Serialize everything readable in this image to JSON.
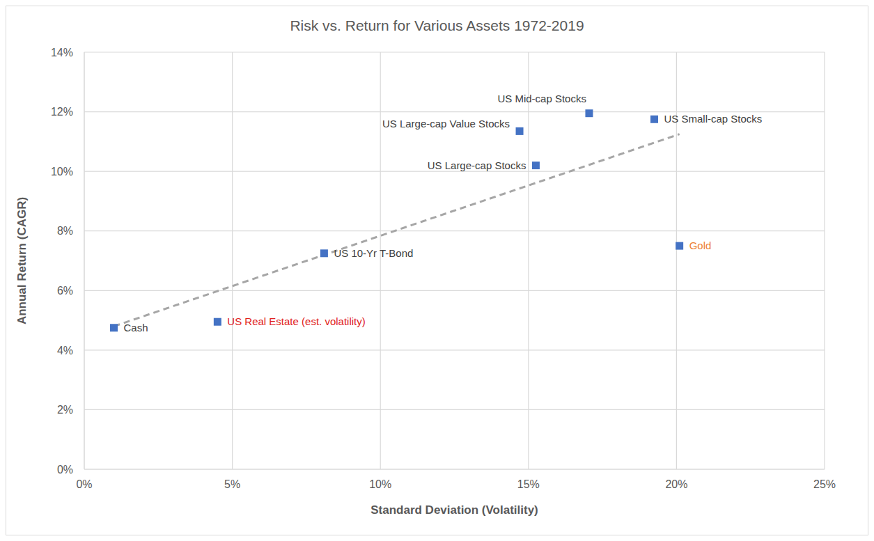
{
  "chart_data": {
    "type": "scatter",
    "title": "Risk vs. Return for Various Assets 1972-2019",
    "x_label": "Standard Deviation (Volatility)",
    "y_label": "Annual Return (CAGR)",
    "x": [
      1.0,
      4.5,
      8.1,
      14.7,
      15.25,
      17.05,
      19.25,
      20.1
    ],
    "values": [
      4.75,
      4.95,
      7.25,
      11.35,
      10.2,
      11.95,
      11.75,
      7.5
    ],
    "labels": [
      {
        "text": "Cash",
        "color": "#404040"
      },
      {
        "text": "US Real Estate (est. volatility)",
        "color": "#e0201b"
      },
      {
        "text": "US 10-Yr T-Bond",
        "color": "#404040"
      },
      {
        "text": "US Large-cap Value Stocks",
        "color": "#404040"
      },
      {
        "text": "US Large-cap Stocks",
        "color": "#404040"
      },
      {
        "text": "US Mid-cap Stocks",
        "color": "#404040"
      },
      {
        "text": "US Small-cap Stocks",
        "color": "#404040"
      },
      {
        "text": "Gold",
        "color": "#ed7d31"
      }
    ],
    "color": "#4472c4",
    "marker": "square",
    "trendline": {
      "x": [
        1.0,
        20.1
      ],
      "y": [
        4.8,
        11.25
      ],
      "color": "#a6a6a6",
      "line_style": "dashed"
    },
    "xlim": [
      0,
      25
    ],
    "xticks": [
      {
        "value": 0,
        "label": "0%"
      },
      {
        "value": 5,
        "label": "5%"
      },
      {
        "value": 10,
        "label": "10%"
      },
      {
        "value": 15,
        "label": "15%"
      },
      {
        "value": 20,
        "label": "20%"
      },
      {
        "value": 25,
        "label": "25%"
      }
    ],
    "ylim": [
      0,
      14
    ],
    "yticks": [
      {
        "value": 0,
        "label": "0%"
      },
      {
        "value": 2,
        "label": "2%"
      },
      {
        "value": 4,
        "label": "4%"
      },
      {
        "value": 6,
        "label": "6%"
      },
      {
        "value": 8,
        "label": "8%"
      },
      {
        "value": 10,
        "label": "10%"
      },
      {
        "value": 12,
        "label": "12%"
      },
      {
        "value": 14,
        "label": "14%"
      }
    ],
    "grid": true
  }
}
